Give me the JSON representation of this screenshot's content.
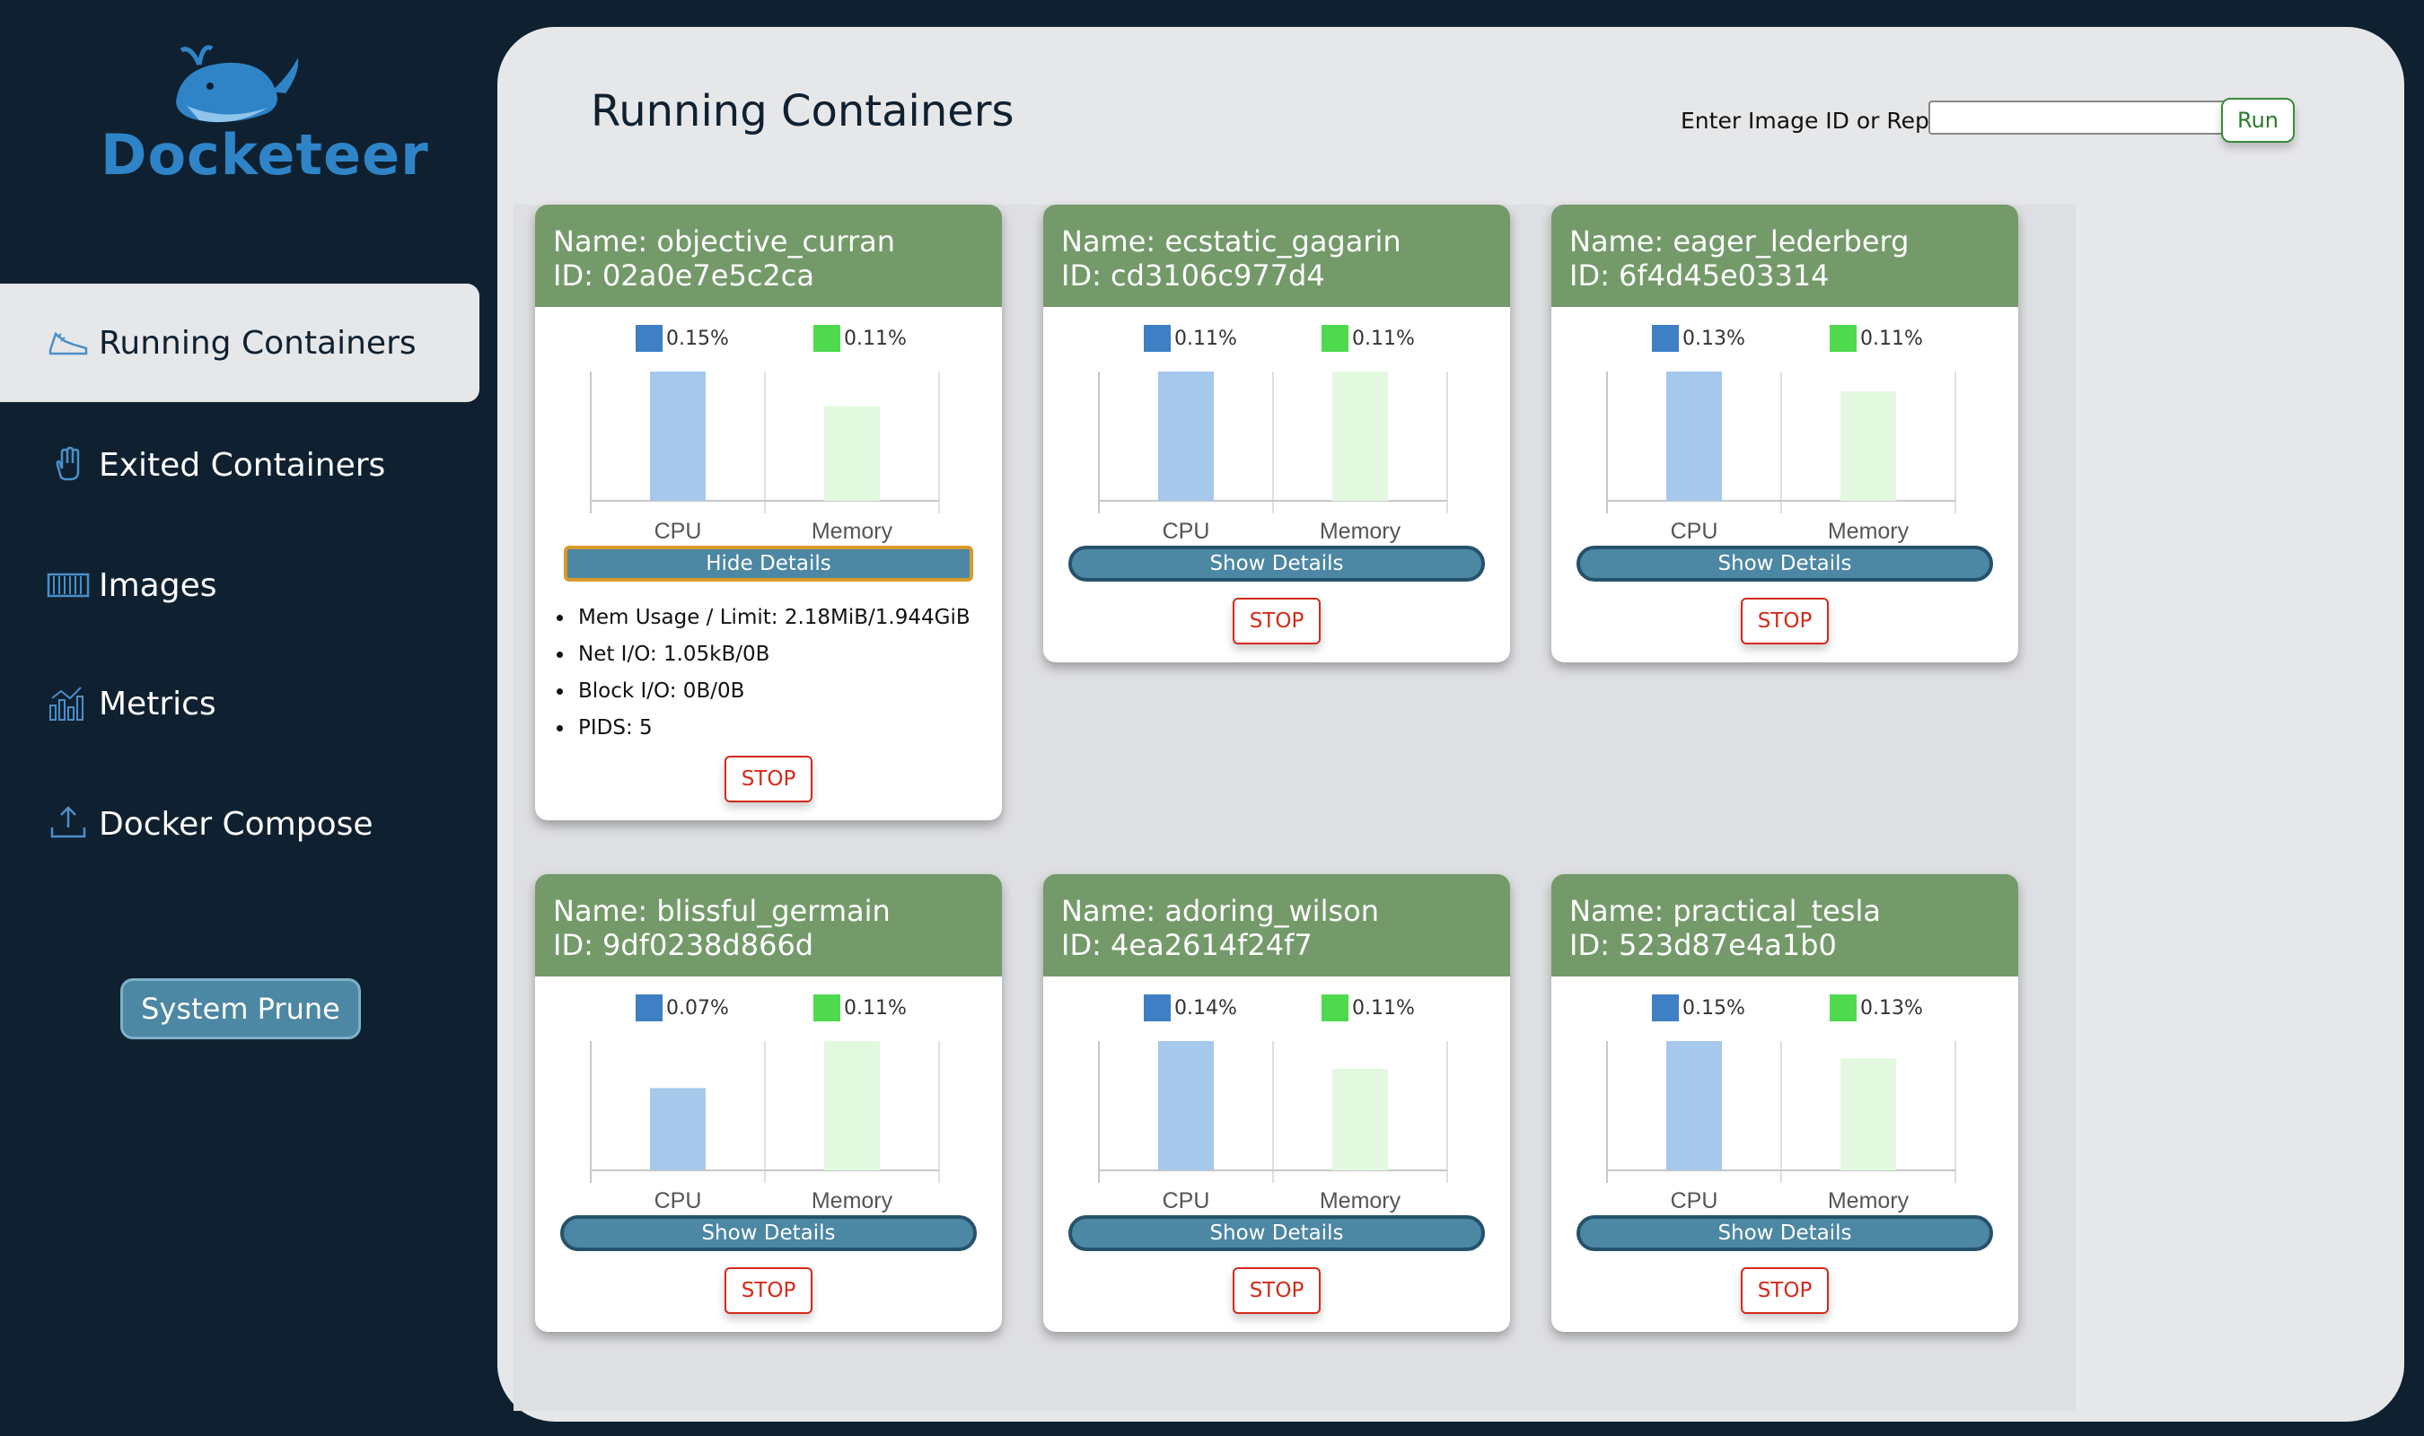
{
  "app": {
    "logo_text": "Docketeer"
  },
  "sidebar": {
    "items": [
      {
        "label": "Running Containers",
        "icon": "sneaker-icon",
        "active": true
      },
      {
        "label": "Exited Containers",
        "icon": "hand-icon",
        "active": false
      },
      {
        "label": "Images",
        "icon": "container-icon",
        "active": false
      },
      {
        "label": "Metrics",
        "icon": "chart-icon",
        "active": false
      },
      {
        "label": "Docker Compose",
        "icon": "upload-icon",
        "active": false
      }
    ],
    "prune_label": "System Prune"
  },
  "header": {
    "title": "Running Containers",
    "run_label": "Enter Image ID or Repo",
    "run_input_value": "",
    "run_button": "Run"
  },
  "colors": {
    "cpu": "#3f7fc4",
    "memory": "#4fd94f",
    "cpu_bar": "#a6c8ea",
    "memory_bar": "#e2f9df",
    "header": "#749a6a"
  },
  "containers": [
    {
      "name": "Name: objective_curran",
      "id": "ID: 02a0e7e5c2ca",
      "cpu_label": "0.15%",
      "mem_label": "0.11%",
      "cpu": 0.15,
      "memory": 0.11,
      "x_cpu": "CPU",
      "x_mem": "Memory",
      "details_label": "Hide Details",
      "stop_label": "STOP",
      "expanded": true,
      "details": [
        "Mem Usage / Limit: 2.18MiB/1.944GiB",
        "Net I/O: 1.05kB/0B",
        "Block I/O: 0B/0B",
        "PIDS: 5"
      ]
    },
    {
      "name": "Name: ecstatic_gagarin",
      "id": "ID: cd3106c977d4",
      "cpu_label": "0.11%",
      "mem_label": "0.11%",
      "cpu": 0.11,
      "memory": 0.11,
      "x_cpu": "CPU",
      "x_mem": "Memory",
      "details_label": "Show Details",
      "stop_label": "STOP",
      "expanded": false
    },
    {
      "name": "Name: eager_lederberg",
      "id": "ID: 6f4d45e03314",
      "cpu_label": "0.13%",
      "mem_label": "0.11%",
      "cpu": 0.13,
      "memory": 0.11,
      "x_cpu": "CPU",
      "x_mem": "Memory",
      "details_label": "Show Details",
      "stop_label": "STOP",
      "expanded": false
    },
    {
      "name": "Name: blissful_germain",
      "id": "ID: 9df0238d866d",
      "cpu_label": "0.07%",
      "mem_label": "0.11%",
      "cpu": 0.07,
      "memory": 0.11,
      "x_cpu": "CPU",
      "x_mem": "Memory",
      "details_label": "Show Details",
      "stop_label": "STOP",
      "expanded": false
    },
    {
      "name": "Name: adoring_wilson",
      "id": "ID: 4ea2614f24f7",
      "cpu_label": "0.14%",
      "mem_label": "0.11%",
      "cpu": 0.14,
      "memory": 0.11,
      "x_cpu": "CPU",
      "x_mem": "Memory",
      "details_label": "Show Details",
      "stop_label": "STOP",
      "expanded": false
    },
    {
      "name": "Name: practical_tesla",
      "id": "ID: 523d87e4a1b0",
      "cpu_label": "0.15%",
      "mem_label": "0.13%",
      "cpu": 0.15,
      "memory": 0.13,
      "x_cpu": "CPU",
      "x_mem": "Memory",
      "details_label": "Show Details",
      "stop_label": "STOP",
      "expanded": false
    }
  ],
  "chart_data": [
    {
      "type": "bar",
      "categories": [
        "CPU",
        "Memory"
      ],
      "series": [
        {
          "name": "0.15%",
          "values": [
            0.15,
            0
          ]
        },
        {
          "name": "0.11%",
          "values": [
            0,
            0.11
          ]
        }
      ]
    },
    {
      "type": "bar",
      "categories": [
        "CPU",
        "Memory"
      ],
      "series": [
        {
          "name": "0.11%",
          "values": [
            0.11,
            0
          ]
        },
        {
          "name": "0.11%",
          "values": [
            0,
            0.11
          ]
        }
      ]
    },
    {
      "type": "bar",
      "categories": [
        "CPU",
        "Memory"
      ],
      "series": [
        {
          "name": "0.13%",
          "values": [
            0.13,
            0
          ]
        },
        {
          "name": "0.11%",
          "values": [
            0,
            0.11
          ]
        }
      ]
    },
    {
      "type": "bar",
      "categories": [
        "CPU",
        "Memory"
      ],
      "series": [
        {
          "name": "0.07%",
          "values": [
            0.07,
            0
          ]
        },
        {
          "name": "0.11%",
          "values": [
            0,
            0.11
          ]
        }
      ]
    },
    {
      "type": "bar",
      "categories": [
        "CPU",
        "Memory"
      ],
      "series": [
        {
          "name": "0.14%",
          "values": [
            0.14,
            0
          ]
        },
        {
          "name": "0.11%",
          "values": [
            0,
            0.11
          ]
        }
      ]
    },
    {
      "type": "bar",
      "categories": [
        "CPU",
        "Memory"
      ],
      "series": [
        {
          "name": "0.15%",
          "values": [
            0.15,
            0
          ]
        },
        {
          "name": "0.13%",
          "values": [
            0,
            0.13
          ]
        }
      ]
    }
  ]
}
